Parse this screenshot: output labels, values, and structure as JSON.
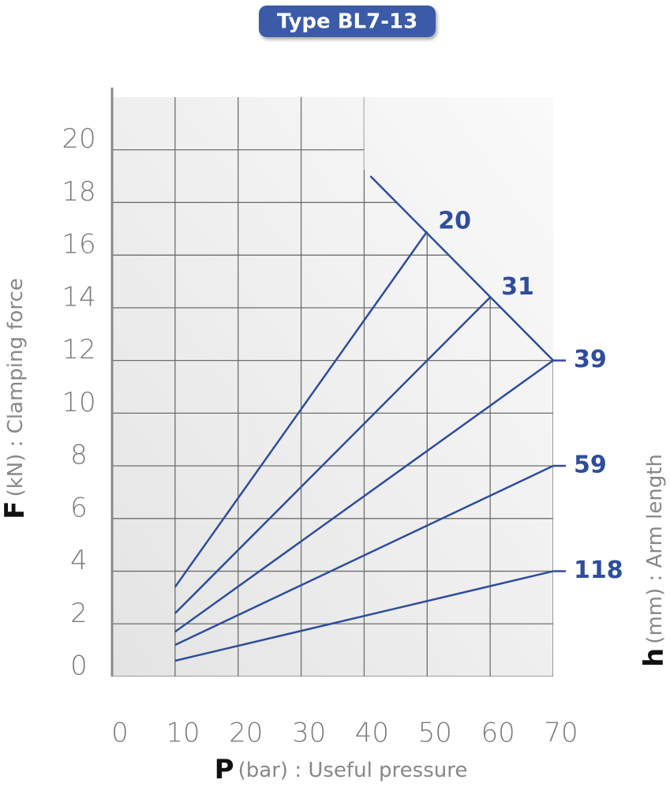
{
  "chart_data": {
    "type": "line",
    "title": "Type BL7-13",
    "x_label_symbol": "P",
    "x_label": "(bar) : Useful pressure",
    "y_label_symbol": "F",
    "y_label": "(kN) : Clamping force",
    "legend_title_symbol": "h",
    "legend_title": "(mm) : Arm length",
    "xlim": [
      0,
      70
    ],
    "ylim": [
      0,
      22
    ],
    "xticks": [
      0,
      10,
      20,
      30,
      40,
      50,
      60,
      70
    ],
    "yticks": [
      0,
      2,
      4,
      6,
      8,
      10,
      12,
      14,
      16,
      18,
      20
    ],
    "grid": true,
    "series": [
      {
        "name": "20",
        "color": "#2e4d9c",
        "x": [
          10,
          50
        ],
        "values": [
          3.4,
          16.9
        ]
      },
      {
        "name": "31",
        "color": "#2e4d9c",
        "x": [
          10,
          60
        ],
        "values": [
          2.4,
          14.4
        ]
      },
      {
        "name": "39",
        "color": "#2e4d9c",
        "x": [
          10,
          70
        ],
        "values": [
          1.7,
          12
        ]
      },
      {
        "name": "59",
        "color": "#2e4d9c",
        "x": [
          10,
          70
        ],
        "values": [
          1.2,
          8
        ]
      },
      {
        "name": "118",
        "color": "#2e4d9c",
        "x": [
          10,
          70
        ],
        "values": [
          0.6,
          4
        ]
      }
    ],
    "envelope": {
      "color": "#2e4d9c",
      "x": [
        41,
        70
      ],
      "values": [
        19,
        12
      ]
    }
  }
}
